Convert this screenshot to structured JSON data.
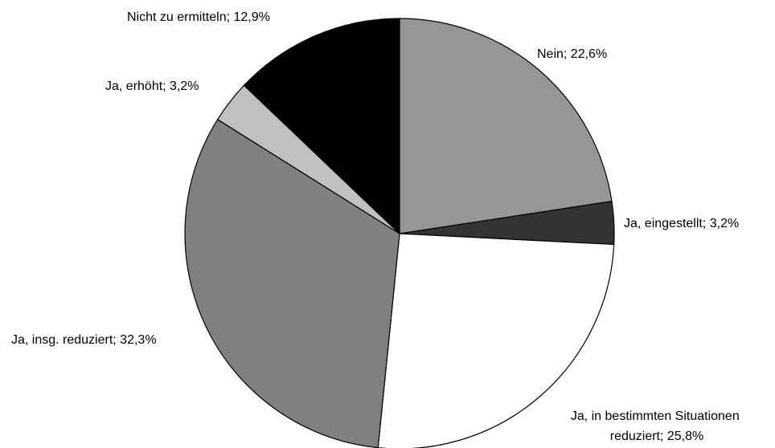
{
  "chart_data": {
    "type": "pie",
    "title": "",
    "start": "12 o'clock",
    "direction": "clockwise",
    "slices": [
      {
        "label": "Nein; 22,6%",
        "value": 22.6,
        "color": "#969696"
      },
      {
        "label": "Ja, eingestellt; 3,2%",
        "value": 3.2,
        "color": "#333333"
      },
      {
        "label_lines": [
          "Ja, in bestimmten Situationen",
          "reduziert; 25,8%"
        ],
        "value": 25.8,
        "color": "#ffffff"
      },
      {
        "label": "Ja, insg. reduziert; 32,3%",
        "value": 32.3,
        "color": "#808080"
      },
      {
        "label": "Ja, erhöht; 3,2%",
        "value": 3.2,
        "color": "#c0c0c0"
      },
      {
        "label": "Nicht zu ermitteln; 12,9%",
        "value": 12.9,
        "color": "#000000"
      }
    ]
  }
}
